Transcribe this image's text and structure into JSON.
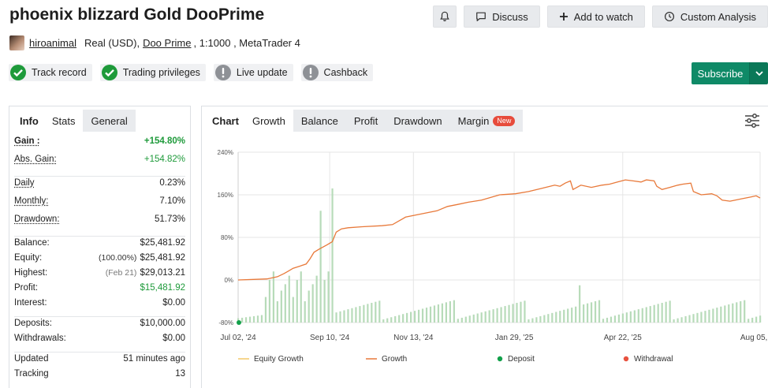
{
  "title": "phoenix blizzard Gold DooPrime",
  "actions": {
    "bell": "bell-icon",
    "discuss": "Discuss",
    "watch": "Add to watch",
    "analysis": "Custom Analysis"
  },
  "account": {
    "user": "hiroanimal",
    "type": "Real (USD),",
    "broker": "Doo Prime",
    "leverage": ", 1:1000 , MetaTrader 4"
  },
  "badges": [
    {
      "label": "Track record",
      "status": "ok"
    },
    {
      "label": "Trading privileges",
      "status": "ok"
    },
    {
      "label": "Live update",
      "status": "warn"
    },
    {
      "label": "Cashback",
      "status": "warn"
    }
  ],
  "subscribe": "Subscribe",
  "left_tabs": {
    "info": "Info",
    "stats": "Stats",
    "general": "General"
  },
  "stats": {
    "gain": {
      "k": "Gain :",
      "v": "+154.80%"
    },
    "abs_gain": {
      "k": "Abs. Gain:",
      "v": "+154.82%"
    },
    "daily": {
      "k": "Daily",
      "v": "0.23%"
    },
    "monthly": {
      "k": "Monthly:",
      "v": "7.10%"
    },
    "drawdown": {
      "k": "Drawdown:",
      "v": "51.73%"
    },
    "balance": {
      "k": "Balance:",
      "v": "$25,481.92"
    },
    "equity": {
      "k": "Equity:",
      "pre": "(100.00%)",
      "v": "$25,481.92"
    },
    "highest": {
      "k": "Highest:",
      "pre": "(Feb 21)",
      "v": "$29,013.21"
    },
    "profit": {
      "k": "Profit:",
      "v": "$15,481.92"
    },
    "interest": {
      "k": "Interest:",
      "v": "$0.00"
    },
    "deposits": {
      "k": "Deposits:",
      "v": "$10,000.00"
    },
    "withdrawals": {
      "k": "Withdrawals:",
      "v": "$0.00"
    },
    "updated": {
      "k": "Updated",
      "v": "51 minutes ago"
    },
    "tracking": {
      "k": "Tracking",
      "v": "13"
    }
  },
  "chart_tabs": {
    "label": "Chart",
    "growth": "Growth",
    "balance": "Balance",
    "profit": "Profit",
    "drawdown": "Drawdown",
    "margin": "Margin",
    "new": "New"
  },
  "colors": {
    "growth": "#e8793a",
    "equity": "#f3c969",
    "bars": "#b7dbb9",
    "deposit": "#12a04a",
    "withdrawal": "#e8523f"
  },
  "chart_data": {
    "type": "line",
    "y_ticks": [
      "240%",
      "160%",
      "80%",
      "0%",
      "-80%"
    ],
    "y_tick_values": [
      240,
      160,
      80,
      0,
      -80
    ],
    "x_ticks": [
      "Jul 02, '24",
      "Sep 10, '24",
      "Nov 13, '24",
      "Jan 29, '25",
      "Apr 22, '25",
      "Aug 05, '25"
    ],
    "x_tick_index": [
      0,
      70,
      134,
      211,
      294,
      399
    ],
    "ylim": [
      -80,
      240
    ],
    "n": 400,
    "series": [
      {
        "name": "Growth",
        "points": [
          [
            0,
            0
          ],
          [
            12,
            1
          ],
          [
            22,
            2
          ],
          [
            30,
            6
          ],
          [
            35,
            12
          ],
          [
            38,
            16
          ],
          [
            42,
            22
          ],
          [
            46,
            25
          ],
          [
            52,
            30
          ],
          [
            55,
            40
          ],
          [
            58,
            52
          ],
          [
            62,
            58
          ],
          [
            68,
            66
          ],
          [
            72,
            72
          ],
          [
            75,
            90
          ],
          [
            79,
            96
          ],
          [
            84,
            98
          ],
          [
            95,
            100
          ],
          [
            110,
            102
          ],
          [
            118,
            104
          ],
          [
            128,
            118
          ],
          [
            140,
            124
          ],
          [
            152,
            130
          ],
          [
            160,
            138
          ],
          [
            168,
            142
          ],
          [
            176,
            146
          ],
          [
            186,
            150
          ],
          [
            200,
            160
          ],
          [
            212,
            162
          ],
          [
            222,
            166
          ],
          [
            232,
            172
          ],
          [
            242,
            178
          ],
          [
            246,
            176
          ],
          [
            250,
            182
          ],
          [
            254,
            186
          ],
          [
            256,
            170
          ],
          [
            262,
            178
          ],
          [
            270,
            174
          ],
          [
            278,
            178
          ],
          [
            284,
            180
          ],
          [
            290,
            184
          ],
          [
            296,
            188
          ],
          [
            302,
            186
          ],
          [
            308,
            184
          ],
          [
            312,
            188
          ],
          [
            318,
            186
          ],
          [
            320,
            176
          ],
          [
            324,
            170
          ],
          [
            330,
            174
          ],
          [
            336,
            178
          ],
          [
            340,
            180
          ],
          [
            346,
            182
          ],
          [
            348,
            166
          ],
          [
            354,
            160
          ],
          [
            362,
            162
          ],
          [
            366,
            158
          ],
          [
            370,
            150
          ],
          [
            376,
            148
          ],
          [
            384,
            152
          ],
          [
            392,
            156
          ],
          [
            396,
            158
          ],
          [
            399,
            154
          ]
        ]
      },
      {
        "name": "Equity Growth",
        "points": []
      }
    ],
    "deposits": [
      [
        0,
        -80
      ]
    ],
    "withdrawals": [],
    "bars_note": "daily activity bars",
    "legend": [
      "Equity Growth",
      "Growth",
      "Deposit",
      "Withdrawal"
    ],
    "legend_position": "bottom"
  }
}
